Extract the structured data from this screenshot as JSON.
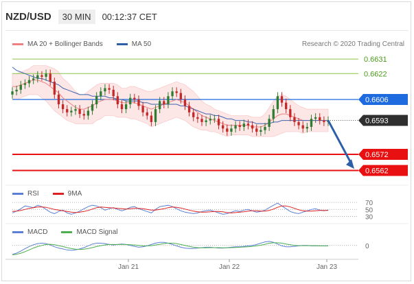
{
  "header": {
    "symbol": "NZD/USD",
    "timeframe": "30 MIN",
    "clock": "00:12:37 CET"
  },
  "legend": {
    "main": [
      {
        "label": "MA 20 + Bollinger Bands",
        "color": "#f08080"
      },
      {
        "label": "MA 50",
        "color": "#2d5fa8"
      }
    ],
    "credit": "Research © 2020 Trading Central",
    "rsi": [
      {
        "label": "RSI",
        "color": "#5b7fd6"
      },
      {
        "label": "9MA",
        "color": "#e02020"
      }
    ],
    "macd": [
      {
        "label": "MACD",
        "color": "#5b7fd6"
      },
      {
        "label": "MACD Signal",
        "color": "#4caf50"
      }
    ]
  },
  "colors": {
    "resistance": "#8bc34a",
    "pivot": "#1e6be0",
    "support": "#e81010",
    "price_badge": "#2f2f2f",
    "arrow": "#2d5fa8",
    "candle_up": "#2e7d32",
    "candle_down": "#c62828",
    "band_fill": "#fde4e4"
  },
  "chart_data": {
    "type": "line",
    "title": "",
    "x_ticks": [
      "Jan 21",
      "Jan 22",
      "Jan 23"
    ],
    "ylim": [
      0.6555,
      0.6637
    ],
    "levels": [
      {
        "value": 0.6631,
        "label": "0.6631",
        "kind": "resistance"
      },
      {
        "value": 0.6622,
        "label": "0.6622",
        "kind": "resistance"
      },
      {
        "value": 0.6606,
        "label": "0.6606",
        "kind": "pivot"
      },
      {
        "value": 0.6593,
        "label": "0.6593",
        "kind": "last_price"
      },
      {
        "value": 0.6572,
        "label": "0.6572",
        "kind": "support"
      },
      {
        "value": 0.6562,
        "label": "0.6562",
        "kind": "support"
      }
    ],
    "price_close": [
      0.6611,
      0.6612,
      0.6615,
      0.6616,
      0.6618,
      0.6619,
      0.6621,
      0.662,
      0.6622,
      0.6617,
      0.6609,
      0.6603,
      0.66,
      0.6598,
      0.6599,
      0.66,
      0.6597,
      0.6596,
      0.6599,
      0.6603,
      0.6608,
      0.6611,
      0.6613,
      0.6612,
      0.6608,
      0.6603,
      0.66,
      0.6603,
      0.6607,
      0.6606,
      0.6602,
      0.6598,
      0.6596,
      0.6592,
      0.66,
      0.6605,
      0.6603,
      0.6608,
      0.6611,
      0.661,
      0.6606,
      0.6602,
      0.6598,
      0.6595,
      0.6594,
      0.6592,
      0.6593,
      0.6594,
      0.6594,
      0.659,
      0.6588,
      0.6586,
      0.6588,
      0.659,
      0.6589,
      0.6591,
      0.659,
      0.6588,
      0.6586,
      0.6587,
      0.6589,
      0.6594,
      0.66,
      0.6608,
      0.6604,
      0.66,
      0.6595,
      0.6592,
      0.659,
      0.6588,
      0.6589,
      0.6594,
      0.6595,
      0.6593,
      0.6592,
      0.6593
    ],
    "ma20": [
      0.6614,
      0.6614,
      0.6615,
      0.6616,
      0.6617,
      0.6618,
      0.6618,
      0.6617,
      0.6616,
      0.6614,
      0.6612,
      0.661,
      0.6607,
      0.6605,
      0.6603,
      0.6601,
      0.66,
      0.66,
      0.6601,
      0.6602,
      0.6604,
      0.6605,
      0.6606,
      0.6606,
      0.6606,
      0.6605,
      0.6604,
      0.6604,
      0.6604,
      0.6604,
      0.6603,
      0.6602,
      0.6601,
      0.66,
      0.6601,
      0.6602,
      0.6603,
      0.6604,
      0.6605,
      0.6606,
      0.6605,
      0.6604,
      0.6602,
      0.66,
      0.6598,
      0.6596,
      0.6595,
      0.6594,
      0.6593,
      0.6592,
      0.6591,
      0.659,
      0.659,
      0.659,
      0.659,
      0.659,
      0.659,
      0.6589,
      0.6589,
      0.6589,
      0.659,
      0.6592,
      0.6594,
      0.6596,
      0.6597,
      0.6597,
      0.6596,
      0.6595,
      0.6594,
      0.6593,
      0.6593,
      0.6593,
      0.6593,
      0.6593,
      0.6593,
      0.6593
    ],
    "ma50": [
      0.6626,
      0.6624,
      0.6623,
      0.6622,
      0.6621,
      0.662,
      0.6619,
      0.6619,
      0.6618,
      0.6617,
      0.6616,
      0.6615,
      0.6613,
      0.6612,
      0.6611,
      0.661,
      0.6609,
      0.6609,
      0.6609,
      0.6608,
      0.6608,
      0.6608,
      0.6608,
      0.6607,
      0.6607,
      0.6606,
      0.6606,
      0.6605,
      0.6605,
      0.6605,
      0.6605,
      0.6604,
      0.6604,
      0.6603,
      0.6603,
      0.6603,
      0.6603,
      0.6603,
      0.6603,
      0.6603,
      0.6602,
      0.6602,
      0.6601,
      0.66,
      0.6599,
      0.6598,
      0.6597,
      0.6597,
      0.6596,
      0.6596,
      0.6595,
      0.6594,
      0.6594,
      0.6593,
      0.6593,
      0.6593,
      0.6592,
      0.6592,
      0.6591,
      0.6591,
      0.6591,
      0.6591,
      0.6592,
      0.6592,
      0.6593,
      0.6593,
      0.6593,
      0.6593,
      0.6593,
      0.6593,
      0.6593,
      0.6593,
      0.6593,
      0.6593,
      0.6593,
      0.6593
    ],
    "band_width": [
      0.0008,
      0.0008,
      0.0008,
      0.0008,
      0.0008,
      0.0009,
      0.0009,
      0.001,
      0.0011,
      0.0012,
      0.0013,
      0.0013,
      0.0012,
      0.0012,
      0.0011,
      0.001,
      0.0009,
      0.0009,
      0.001,
      0.0011,
      0.0011,
      0.0011,
      0.001,
      0.001,
      0.001,
      0.001,
      0.0009,
      0.0009,
      0.001,
      0.001,
      0.001,
      0.001,
      0.001,
      0.0011,
      0.0011,
      0.0011,
      0.0011,
      0.0011,
      0.0011,
      0.0011,
      0.0011,
      0.0011,
      0.0011,
      0.0011,
      0.001,
      0.0009,
      0.0008,
      0.0008,
      0.0007,
      0.0007,
      0.0007,
      0.0007,
      0.0006,
      0.0006,
      0.0006,
      0.0006,
      0.0006,
      0.0006,
      0.0006,
      0.0006,
      0.0007,
      0.0009,
      0.0011,
      0.0012,
      0.0012,
      0.0011,
      0.001,
      0.0009,
      0.0008,
      0.0008,
      0.0007,
      0.0007,
      0.0007,
      0.0007,
      0.0007,
      0.0007
    ],
    "rsi": {
      "levels": [
        70,
        50,
        30
      ],
      "ylim": [
        25,
        80
      ],
      "rsi": [
        40,
        45,
        52,
        60,
        58,
        55,
        62,
        58,
        50,
        42,
        38,
        44,
        48,
        40,
        36,
        40,
        45,
        52,
        58,
        62,
        60,
        55,
        48,
        52,
        55,
        50,
        46,
        50,
        56,
        58,
        52,
        48,
        44,
        40,
        50,
        58,
        60,
        62,
        58,
        52,
        46,
        42,
        40,
        38,
        40,
        44,
        46,
        48,
        44,
        40,
        36,
        38,
        42,
        46,
        44,
        48,
        50,
        46,
        42,
        44,
        48,
        55,
        62,
        68,
        60,
        52,
        44,
        40,
        38,
        42,
        46,
        50,
        52,
        48,
        46,
        48
      ],
      "ma": [
        44,
        45,
        47,
        50,
        53,
        55,
        57,
        57,
        56,
        53,
        50,
        48,
        46,
        44,
        42,
        41,
        42,
        44,
        47,
        51,
        55,
        57,
        56,
        55,
        54,
        53,
        52,
        51,
        52,
        53,
        53,
        52,
        50,
        48,
        48,
        50,
        52,
        55,
        57,
        56,
        54,
        51,
        48,
        45,
        43,
        42,
        42,
        43,
        44,
        44,
        43,
        41,
        40,
        41,
        42,
        43,
        45,
        46,
        46,
        45,
        45,
        47,
        51,
        56,
        60,
        60,
        57,
        53,
        49,
        46,
        45,
        45,
        46,
        47,
        47,
        47
      ]
    },
    "macd": {
      "zero_label": "0",
      "ylim": [
        -0.0005,
        0.0003
      ],
      "macd": [
        -0.0004,
        -0.00035,
        -0.00025,
        -0.00015,
        -5e-05,
        3e-05,
        8e-05,
        0.0001,
        8e-05,
        2e-05,
        -6e-05,
        -0.00012,
        -0.00016,
        -0.0002,
        -0.00022,
        -0.0002,
        -0.00016,
        -0.0001,
        -2e-05,
        6e-05,
        0.0001,
        0.0001,
        8e-05,
        4e-05,
        2e-05,
        4e-05,
        6e-05,
        4e-05,
        0.0,
        -4e-05,
        -8e-05,
        -6e-05,
        -2e-05,
        4e-05,
        0.0001,
        0.00014,
        0.00014,
        0.0001,
        4e-05,
        -2e-05,
        -8e-05,
        -0.00012,
        -0.00014,
        -0.00014,
        -0.00012,
        -0.0001,
        -8e-05,
        -8e-05,
        -0.0001,
        -0.00012,
        -0.00012,
        -0.0001,
        -8e-05,
        -6e-05,
        -6e-05,
        -4e-05,
        -2e-05,
        0.0,
        4e-05,
        0.0001,
        0.00016,
        0.00018,
        0.00014,
        6e-05,
        -2e-05,
        -6e-05,
        -6e-05,
        -4e-05,
        -2e-05,
        0.0,
        0.0,
        -2e-05,
        -2e-05,
        -2e-05,
        -2e-05,
        -2e-05
      ],
      "signal": [
        -0.00042,
        -0.0004,
        -0.00035,
        -0.00028,
        -0.0002,
        -0.00012,
        -5e-05,
        0.0,
        4e-05,
        5e-05,
        3e-05,
        -1e-05,
        -5e-05,
        -0.0001,
        -0.00014,
        -0.00017,
        -0.00018,
        -0.00017,
        -0.00014,
        -0.0001,
        -5e-05,
        -1e-05,
        2e-05,
        4e-05,
        4e-05,
        4e-05,
        4e-05,
        4e-05,
        3e-05,
        2e-05,
        0.0,
        -2e-05,
        -2e-05,
        -1e-05,
        2e-05,
        5e-05,
        8e-05,
        0.0001,
        0.0001,
        8e-05,
        4e-05,
        0.0,
        -4e-05,
        -8e-05,
        -0.0001,
        -0.00011,
        -0.00011,
        -0.0001,
        -0.0001,
        -0.0001,
        -0.00011,
        -0.00011,
        -0.0001,
        -9e-05,
        -8e-05,
        -7e-05,
        -6e-05,
        -4e-05,
        -2e-05,
        1e-05,
        5e-05,
        0.0001,
        0.00012,
        0.00012,
        0.0001,
        6e-05,
        3e-05,
        0.0,
        -1e-05,
        -1e-05,
        -1e-05,
        -1e-05,
        -1e-05,
        -2e-05,
        -2e-05,
        -2e-05
      ]
    }
  }
}
